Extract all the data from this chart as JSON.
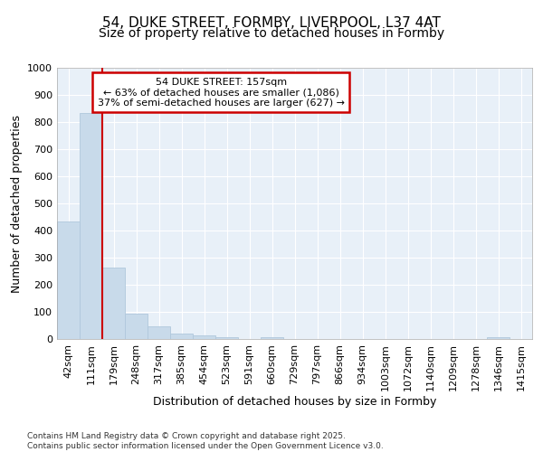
{
  "title1": "54, DUKE STREET, FORMBY, LIVERPOOL, L37 4AT",
  "title2": "Size of property relative to detached houses in Formby",
  "xlabel": "Distribution of detached houses by size in Formby",
  "ylabel": "Number of detached properties",
  "categories": [
    "42sqm",
    "111sqm",
    "179sqm",
    "248sqm",
    "317sqm",
    "385sqm",
    "454sqm",
    "523sqm",
    "591sqm",
    "660sqm",
    "729sqm",
    "797sqm",
    "866sqm",
    "934sqm",
    "1003sqm",
    "1072sqm",
    "1140sqm",
    "1209sqm",
    "1278sqm",
    "1346sqm",
    "1415sqm"
  ],
  "values": [
    435,
    835,
    265,
    92,
    47,
    20,
    12,
    8,
    0,
    8,
    0,
    0,
    0,
    0,
    0,
    0,
    0,
    0,
    0,
    8,
    0
  ],
  "bar_color": "#c8daea",
  "bar_edge_color": "#b0c8dc",
  "vline_color": "#cc0000",
  "annotation_text": "54 DUKE STREET: 157sqm\n← 63% of detached houses are smaller (1,086)\n37% of semi-detached houses are larger (627) →",
  "annotation_box_color": "#cc0000",
  "background_color": "#e8f0f8",
  "grid_color": "#ffffff",
  "ylim": [
    0,
    1000
  ],
  "yticks": [
    0,
    100,
    200,
    300,
    400,
    500,
    600,
    700,
    800,
    900,
    1000
  ],
  "footer": "Contains HM Land Registry data © Crown copyright and database right 2025.\nContains public sector information licensed under the Open Government Licence v3.0.",
  "title_fontsize": 11,
  "subtitle_fontsize": 10,
  "label_fontsize": 9,
  "tick_fontsize": 8
}
